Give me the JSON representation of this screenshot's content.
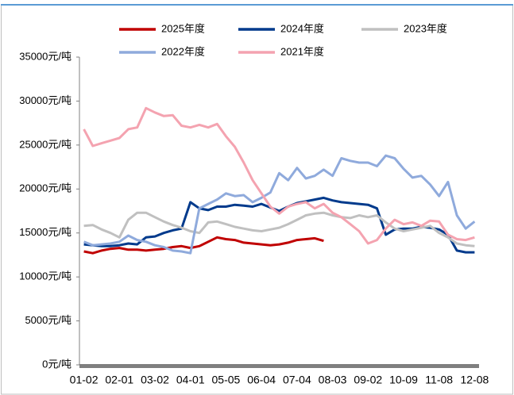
{
  "chart_data": {
    "type": "line",
    "categories": [
      "01-02",
      null,
      null,
      null,
      "02-01",
      null,
      null,
      null,
      "03-02",
      null,
      null,
      null,
      "04-01",
      null,
      null,
      null,
      "05-05",
      null,
      null,
      null,
      "06-04",
      null,
      null,
      null,
      "07-04",
      null,
      null,
      null,
      "08-03",
      null,
      null,
      null,
      "09-02",
      null,
      null,
      null,
      "10-09",
      null,
      null,
      null,
      "11-08",
      null,
      null,
      null,
      "12-08"
    ],
    "series": [
      {
        "name": "2025年度",
        "color": "#c00000",
        "values": [
          12900,
          12700,
          13000,
          13200,
          13300,
          13100,
          13100,
          13000,
          13100,
          13200,
          13400,
          13500,
          13300,
          13500,
          14000,
          14500,
          14300,
          14200,
          13900,
          13800,
          13700,
          13600,
          13700,
          13900,
          14200,
          14300,
          14400,
          14100,
          null,
          null,
          null,
          null,
          null,
          null,
          null,
          null,
          null,
          null,
          null,
          null,
          null,
          null,
          null,
          null,
          null
        ]
      },
      {
        "name": "2024年度",
        "color": "#003a8c",
        "values": [
          13700,
          13600,
          13500,
          13500,
          13600,
          13800,
          13700,
          14500,
          14600,
          15000,
          15300,
          15500,
          18500,
          17800,
          17600,
          18000,
          18000,
          18200,
          18100,
          18000,
          18300,
          17900,
          17500,
          18000,
          18400,
          18600,
          18800,
          19000,
          18700,
          18500,
          18400,
          18300,
          18200,
          17800,
          14800,
          15400,
          15500,
          15500,
          15700,
          15600,
          15400,
          14800,
          13000,
          12800,
          12800
        ]
      },
      {
        "name": "2023年度",
        "color": "#c0c0c0",
        "values": [
          15800,
          15900,
          15400,
          15000,
          14500,
          16500,
          17300,
          17300,
          16800,
          16300,
          15900,
          15600,
          15200,
          15000,
          16200,
          16300,
          16000,
          15700,
          15500,
          15300,
          15200,
          15400,
          15600,
          16000,
          16500,
          17000,
          17200,
          17300,
          17000,
          16800,
          16700,
          17000,
          16800,
          17000,
          16200,
          15500,
          15200,
          15400,
          15600,
          15800,
          15000,
          14500,
          13800,
          13600,
          13500
        ]
      },
      {
        "name": "2022年度",
        "color": "#8faadc",
        "values": [
          14000,
          13600,
          13700,
          13800,
          14000,
          14700,
          14200,
          14000,
          13600,
          13400,
          13000,
          12900,
          12700,
          17800,
          18300,
          18800,
          19500,
          19200,
          19300,
          18500,
          19000,
          19600,
          21800,
          21000,
          22400,
          21200,
          21500,
          22200,
          21500,
          23500,
          23200,
          23000,
          23000,
          22600,
          23800,
          23500,
          22300,
          21300,
          21500,
          20500,
          19200,
          20800,
          17000,
          15500,
          16300
        ]
      },
      {
        "name": "2021年度",
        "color": "#f4a3b0",
        "values": [
          26800,
          24900,
          25200,
          25500,
          25800,
          26800,
          27000,
          29200,
          28700,
          28300,
          28400,
          27200,
          27000,
          27300,
          27000,
          27400,
          26000,
          24800,
          23000,
          21000,
          19500,
          18000,
          17200,
          18000,
          18300,
          18500,
          17800,
          18300,
          17300,
          16800,
          16000,
          15200,
          13800,
          14200,
          15500,
          16500,
          16000,
          16200,
          15800,
          16400,
          16300,
          14800,
          14300,
          14200,
          14500
        ]
      }
    ],
    "ylim": [
      0,
      35000
    ],
    "yticks": [
      {
        "value": 0,
        "label": "0元/吨"
      },
      {
        "value": 5000,
        "label": "5000元/吨"
      },
      {
        "value": 10000,
        "label": "10000元/吨"
      },
      {
        "value": 15000,
        "label": "15000元/吨"
      },
      {
        "value": 20000,
        "label": "20000元/吨"
      },
      {
        "value": 25000,
        "label": "25000元/吨"
      },
      {
        "value": 30000,
        "label": "30000元/吨"
      },
      {
        "value": 35000,
        "label": "35000元/吨"
      }
    ],
    "legend": "top",
    "grid": false
  }
}
